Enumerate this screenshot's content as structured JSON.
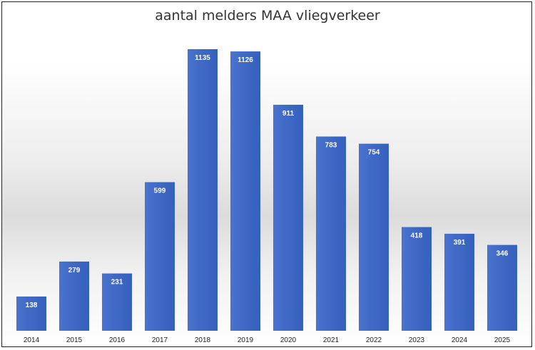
{
  "chart_data": {
    "type": "bar",
    "title": "aantal melders MAA vliegverkeer",
    "categories": [
      "2014",
      "2015",
      "2016",
      "2017",
      "2018",
      "2019",
      "2020",
      "2021",
      "2022",
      "2023",
      "2024",
      "2025"
    ],
    "values": [
      138,
      279,
      231,
      599,
      1135,
      1126,
      911,
      783,
      754,
      418,
      391,
      346
    ],
    "xlabel": "",
    "ylabel": "",
    "grid": false,
    "legend": "none",
    "bar_color": "#3e68c4"
  }
}
